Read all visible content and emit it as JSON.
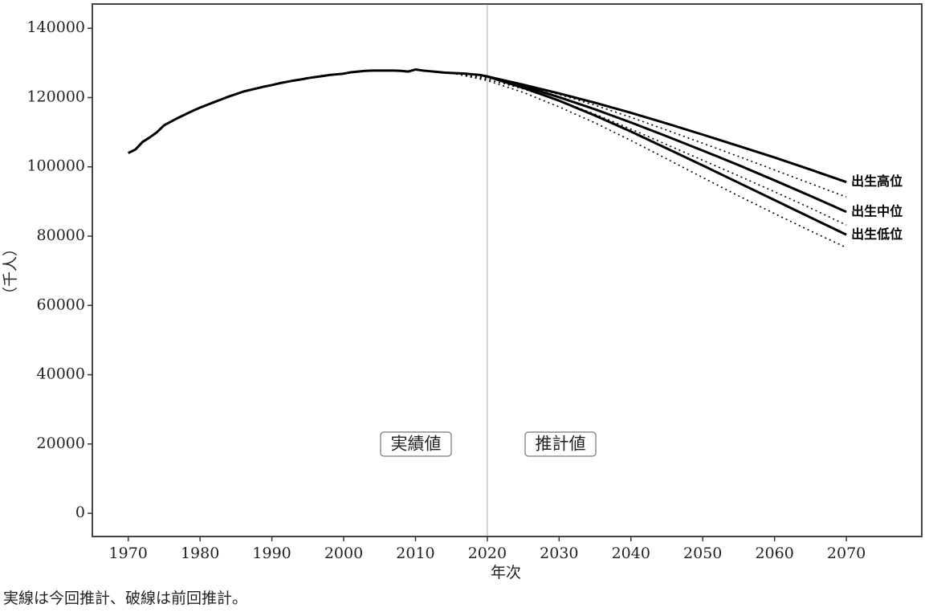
{
  "chart_data": {
    "type": "line",
    "y_label": "（千人）",
    "x_label": "年次",
    "note": "実線は今回推計、破線は前回推計。",
    "annotations": [
      "実績値",
      "推計値"
    ],
    "vline": 2020,
    "xlim": [
      1965,
      2080.5
    ],
    "ylim": [
      -6700,
      147000
    ],
    "xticks": [
      1970,
      1980,
      1990,
      2000,
      2010,
      2020,
      2030,
      2040,
      2050,
      2060,
      2070
    ],
    "yticks": [
      0,
      20000,
      40000,
      60000,
      80000,
      100000,
      120000,
      140000
    ],
    "series": [
      {
        "color": "#000000",
        "dash": false,
        "x": [
          1970,
          1971,
          1972,
          1973,
          1974,
          1975,
          1976,
          1977,
          1978,
          1979,
          1980,
          1981,
          1982,
          1983,
          1984,
          1985,
          1986,
          1987,
          1988,
          1989,
          1990,
          1991,
          1992,
          1993,
          1994,
          1995,
          1996,
          1997,
          1998,
          1999,
          2000,
          2001,
          2002,
          2003,
          2004,
          2005,
          2006,
          2007,
          2008,
          2009,
          2010,
          2011,
          2012,
          2013,
          2014,
          2015,
          2016,
          2017,
          2018,
          2019,
          2020
        ],
        "values": [
          104000,
          105000,
          107200,
          108500,
          110000,
          112000,
          113100,
          114200,
          115200,
          116200,
          117100,
          117900,
          118700,
          119500,
          120300,
          121000,
          121700,
          122200,
          122700,
          123200,
          123600,
          124100,
          124500,
          124900,
          125200,
          125600,
          125900,
          126200,
          126500,
          126700,
          126900,
          127300,
          127500,
          127700,
          127800,
          127800,
          127800,
          127800,
          127700,
          127500,
          128100,
          127800,
          127600,
          127400,
          127200,
          127100,
          127000,
          126900,
          126700,
          126500,
          126100
        ]
      },
      {
        "name": "出生高位",
        "color": "#000000",
        "dash": false,
        "x": [
          2020,
          2025,
          2030,
          2035,
          2040,
          2045,
          2050,
          2055,
          2060,
          2065,
          2070
        ],
        "values": [
          126100,
          123700,
          121200,
          118500,
          115600,
          112500,
          109300,
          106000,
          102700,
          99200,
          95600
        ]
      },
      {
        "name": "出生中位",
        "color": "#000000",
        "dash": false,
        "x": [
          2020,
          2025,
          2030,
          2035,
          2040,
          2045,
          2050,
          2055,
          2060,
          2065,
          2070
        ],
        "values": [
          126100,
          123300,
          120100,
          116600,
          112800,
          108800,
          104700,
          100500,
          96100,
          91600,
          87000
        ]
      },
      {
        "name": "出生低位",
        "color": "#000000",
        "dash": false,
        "x": [
          2020,
          2025,
          2030,
          2035,
          2040,
          2045,
          2050,
          2055,
          2060,
          2065,
          2070
        ],
        "values": [
          126100,
          122800,
          119100,
          114800,
          110200,
          105300,
          100400,
          95400,
          90400,
          85400,
          80400
        ]
      },
      {
        "color": "#000000",
        "dash": true,
        "x": [
          2015,
          2020,
          2025,
          2030,
          2035,
          2040,
          2045,
          2050,
          2055,
          2060,
          2065,
          2070
        ],
        "values": [
          127100,
          125700,
          123600,
          120900,
          117800,
          114300,
          110600,
          106800,
          103000,
          99100,
          95200,
          91300
        ]
      },
      {
        "color": "#000000",
        "dash": true,
        "x": [
          2015,
          2020,
          2025,
          2030,
          2035,
          2040,
          2045,
          2050,
          2055,
          2060,
          2065,
          2070
        ],
        "values": [
          127100,
          125300,
          122500,
          119100,
          115200,
          110900,
          106400,
          101900,
          97400,
          92800,
          88100,
          83200
        ]
      },
      {
        "color": "#000000",
        "dash": true,
        "x": [
          2015,
          2020,
          2025,
          2030,
          2035,
          2040,
          2045,
          2050,
          2055,
          2060,
          2065,
          2070
        ],
        "values": [
          127100,
          124900,
          121500,
          117300,
          112700,
          107600,
          102300,
          96900,
          91600,
          86500,
          81500,
          76700
        ]
      }
    ]
  }
}
